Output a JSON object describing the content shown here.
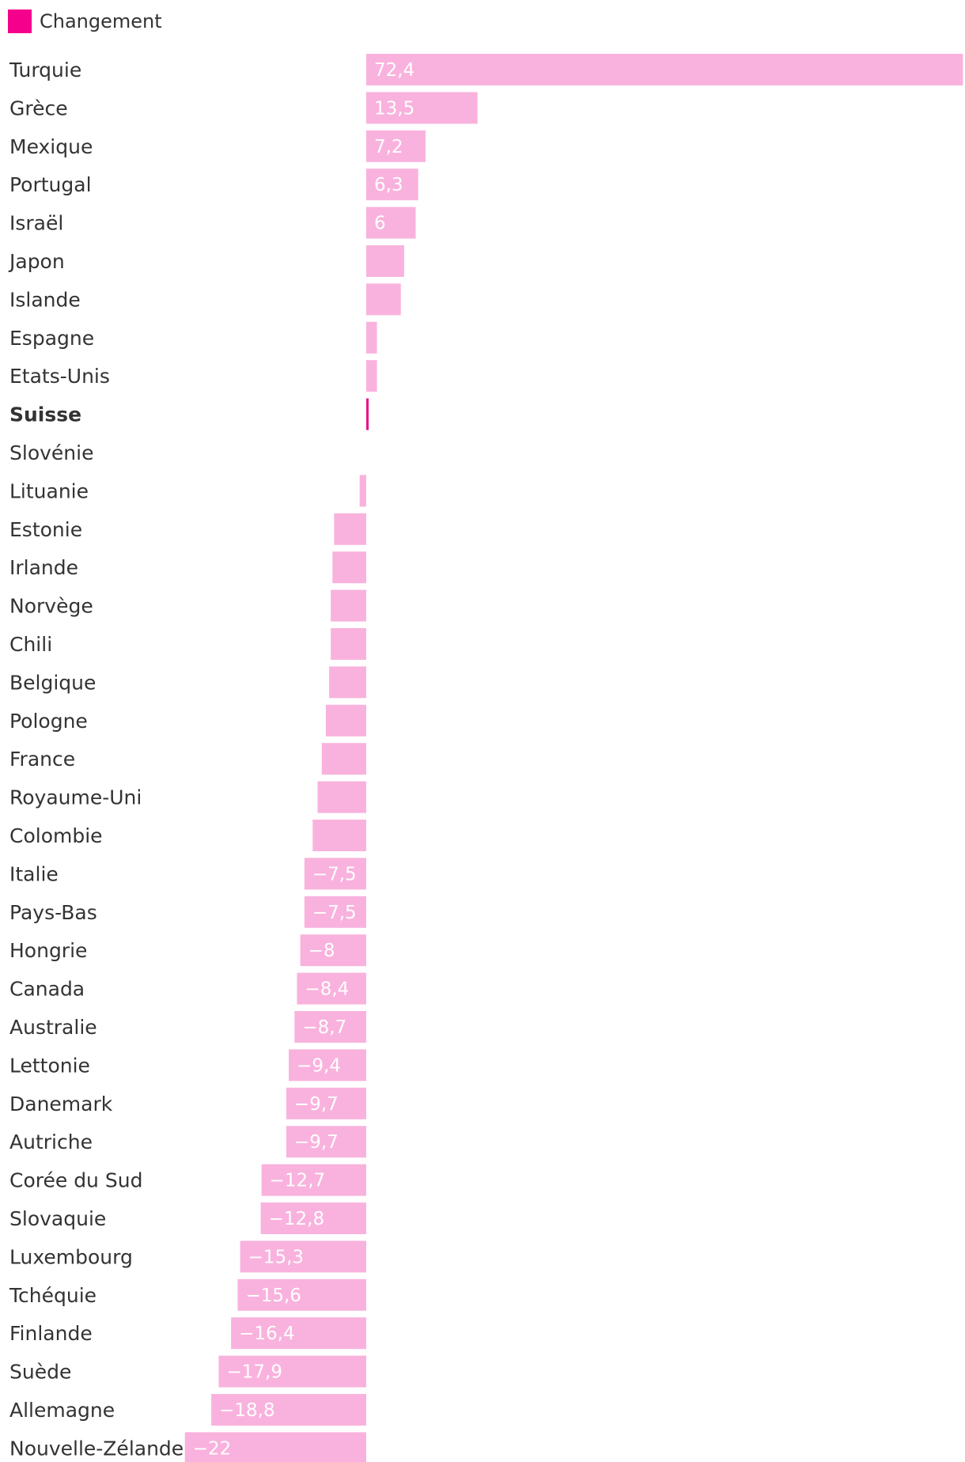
{
  "colors": {
    "legend": "#f5008c",
    "bar": "#f9b2dd",
    "highlight": "#e8148c",
    "label": "#333333",
    "value_text": "#ffffff"
  },
  "legend": {
    "label": "Changement"
  },
  "chart_data": {
    "type": "bar",
    "orientation": "horizontal",
    "series": [
      {
        "name": "Changement"
      }
    ],
    "highlight": "Suisse",
    "xlim": [
      -23.5,
      75.5
    ],
    "categories": [
      "Turquie",
      "Grèce",
      "Mexique",
      "Portugal",
      "Israël",
      "Japon",
      "Islande",
      "Espagne",
      "Etats-Unis",
      "Suisse",
      "Slovénie",
      "Lituanie",
      "Estonie",
      "Irlande",
      "Norvège",
      "Chili",
      "Belgique",
      "Pologne",
      "France",
      "Royaume-Uni",
      "Colombie",
      "Italie",
      "Pays-Bas",
      "Hongrie",
      "Canada",
      "Australie",
      "Lettonie",
      "Danemark",
      "Autriche",
      "Corée du Sud",
      "Slovaquie",
      "Luxembourg",
      "Tchéquie",
      "Finlande",
      "Suède",
      "Allemagne",
      "Nouvelle-Zélande"
    ],
    "values": [
      72.4,
      13.5,
      7.2,
      6.3,
      6.0,
      4.6,
      4.2,
      1.3,
      1.3,
      0.3,
      0.0,
      -0.8,
      -3.9,
      -4.1,
      -4.3,
      -4.3,
      -4.5,
      -4.9,
      -5.4,
      -5.9,
      -6.5,
      -7.5,
      -7.5,
      -8.0,
      -8.4,
      -8.7,
      -9.4,
      -9.7,
      -9.7,
      -12.7,
      -12.8,
      -15.3,
      -15.6,
      -16.4,
      -17.9,
      -18.8,
      -22.0
    ],
    "value_labels": [
      "72,4",
      "13,5",
      "7,2",
      "6,3",
      "6",
      "",
      "",
      "",
      "",
      "",
      "",
      "",
      "",
      "",
      "",
      "",
      "",
      "",
      "",
      "",
      "",
      "−7,5",
      "−7,5",
      "−8",
      "−8,4",
      "−8,7",
      "−9,4",
      "−9,7",
      "−9,7",
      "−12,7",
      "−12,8",
      "−15,3",
      "−15,6",
      "−16,4",
      "−17,9",
      "−18,8",
      "−22"
    ]
  }
}
